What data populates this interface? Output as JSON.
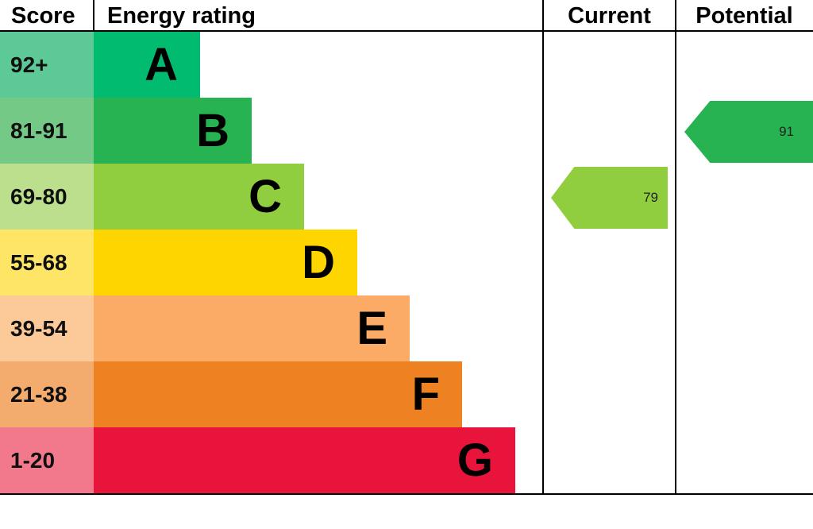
{
  "header": {
    "score": "Score",
    "energy_rating": "Energy rating",
    "current": "Current",
    "potential": "Potential"
  },
  "chart_data": {
    "type": "bar",
    "title": "Energy rating",
    "orientation": "horizontal",
    "legend_position": "none",
    "grid": false,
    "bands": [
      {
        "score_range": "92+",
        "letter": "A",
        "bar_color": "#00bb70",
        "score_bg": "#5cc997"
      },
      {
        "score_range": "81-91",
        "letter": "B",
        "bar_color": "#27b351",
        "score_bg": "#74c986"
      },
      {
        "score_range": "69-80",
        "letter": "C",
        "bar_color": "#90ce3f",
        "score_bg": "#bcdf8e"
      },
      {
        "score_range": "55-68",
        "letter": "D",
        "bar_color": "#ffd500",
        "score_bg": "#ffe566"
      },
      {
        "score_range": "39-54",
        "letter": "E",
        "bar_color": "#fbab66",
        "score_bg": "#fcca98"
      },
      {
        "score_range": "21-38",
        "letter": "F",
        "bar_color": "#ee8223",
        "score_bg": "#f4ab6e"
      },
      {
        "score_range": "1-20",
        "letter": "G",
        "bar_color": "#e8143c",
        "score_bg": "#f1798b"
      }
    ],
    "markers": {
      "current": {
        "value": "79",
        "band": "C",
        "color": "#90ce3f"
      },
      "potential": {
        "value": "91",
        "band": "B",
        "color": "#27b351"
      }
    }
  }
}
